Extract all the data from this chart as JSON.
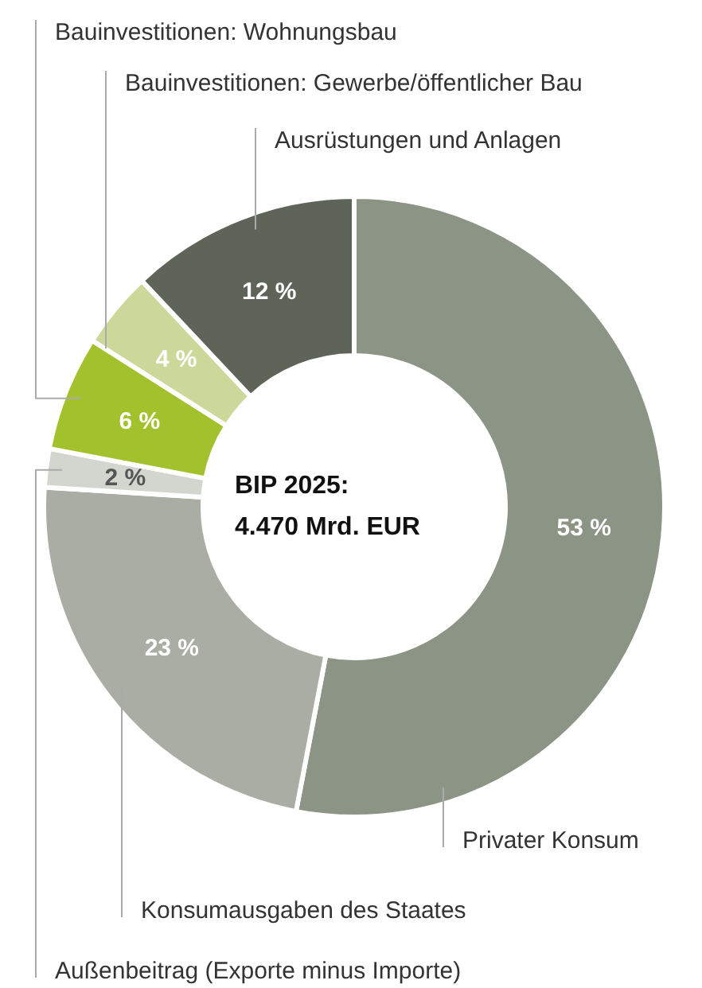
{
  "chart_data": {
    "type": "donut",
    "categories": [
      "Privater Konsum",
      "Konsumausgaben des Staates",
      "Außenbeitrag (Exporte minus Importe)",
      "Bauinvestitionen: Wohnungsbau",
      "Bauinvestitionen: Gewerbe/öffentlicher Bau",
      "Ausrüstungen und Anlagen"
    ],
    "values": [
      53,
      23,
      2,
      6,
      4,
      12
    ],
    "colors": [
      "#8c9585",
      "#a9ada3",
      "#d3d6cf",
      "#a3c12d",
      "#ccd89a",
      "#5e6458"
    ],
    "value_labels": [
      "53 %",
      "23 %",
      "2 %",
      "6 %",
      "4 %",
      "12 %"
    ],
    "annotations": [
      "BIP 2025:\n4.470 Mrd. EUR"
    ]
  }
}
